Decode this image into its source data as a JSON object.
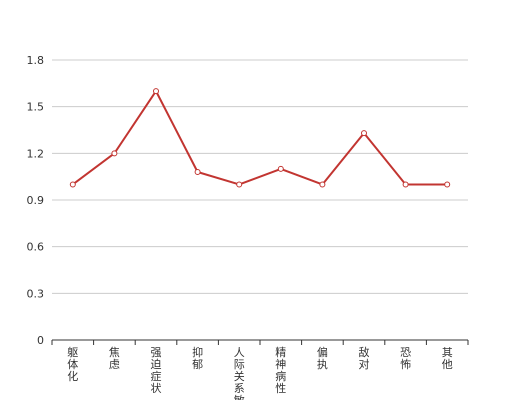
{
  "chart_data": {
    "type": "line",
    "title": "",
    "xlabel": "",
    "ylabel": "",
    "categories": [
      "躯体化",
      "焦虑",
      "强迫症状",
      "抑郁",
      "人际关系敏感",
      "精神病性",
      "偏执",
      "敌对",
      "恐怖",
      "其他"
    ],
    "series": [
      {
        "values": [
          1.0,
          1.2,
          1.6,
          1.08,
          1.0,
          1.1,
          1.0,
          1.33,
          1.0,
          1.0
        ]
      }
    ],
    "ylim": [
      0,
      1.8
    ],
    "yticks": [
      "0",
      "0.3",
      "0.6",
      "0.9",
      "1.2",
      "1.5",
      "1.8"
    ],
    "grid": true,
    "legend": "none",
    "colors": {
      "line": "#c23531",
      "grid": "#cccccc",
      "axis": "#333333",
      "point_fill": "#ffffff"
    }
  }
}
